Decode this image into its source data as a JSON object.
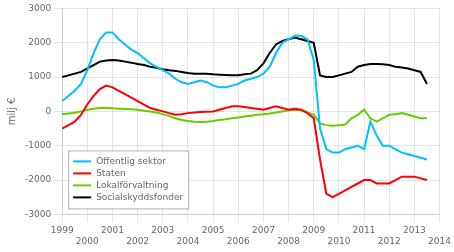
{
  "chart_data": {
    "type": "line",
    "y_label": "milj €",
    "xlim": [
      1999.0,
      2014.0
    ],
    "ylim": [
      -3000,
      3000
    ],
    "xticks": [
      1999,
      2000,
      2001,
      2002,
      2003,
      2004,
      2005,
      2006,
      2007,
      2008,
      2009,
      2010,
      2011,
      2012,
      2013,
      2014
    ],
    "yticks": [
      -3000,
      -2000,
      -1000,
      0,
      1000,
      2000,
      3000
    ],
    "grid": true,
    "legend": "lower left",
    "x": [
      1999.0,
      1999.25,
      1999.5,
      1999.75,
      2000.0,
      2000.25,
      2000.5,
      2000.75,
      2001.0,
      2001.25,
      2001.5,
      2001.75,
      2002.0,
      2002.25,
      2002.5,
      2002.75,
      2003.0,
      2003.25,
      2003.5,
      2003.75,
      2004.0,
      2004.25,
      2004.5,
      2004.75,
      2005.0,
      2005.25,
      2005.5,
      2005.75,
      2006.0,
      2006.25,
      2006.5,
      2006.75,
      2007.0,
      2007.25,
      2007.5,
      2007.75,
      2008.0,
      2008.25,
      2008.5,
      2008.75,
      2009.0,
      2009.25,
      2009.5,
      2009.75,
      2010.0,
      2010.25,
      2010.5,
      2010.75,
      2011.0,
      2011.25,
      2011.5,
      2011.75,
      2012.0,
      2012.25,
      2012.5,
      2012.75,
      2013.0,
      2013.25,
      2013.5
    ],
    "series": [
      {
        "name": "Offentlig sektor",
        "color": "#00bfff",
        "values": [
          300,
          450,
          600,
          800,
          1200,
          1700,
          2100,
          2300,
          2300,
          2100,
          1950,
          1800,
          1700,
          1550,
          1400,
          1300,
          1200,
          1100,
          950,
          850,
          800,
          850,
          900,
          850,
          750,
          700,
          700,
          750,
          800,
          900,
          950,
          1000,
          1100,
          1300,
          1700,
          2000,
          2100,
          2200,
          2200,
          2100,
          1500,
          -500,
          -1100,
          -1200,
          -1200,
          -1100,
          -1050,
          -1000,
          -1100,
          -300,
          -700,
          -1000,
          -1000,
          -1100,
          -1200,
          -1250,
          -1300,
          -1350,
          -1400
        ]
      },
      {
        "name": "Staten",
        "color": "#ff0000",
        "values": [
          -500,
          -400,
          -300,
          -100,
          200,
          450,
          650,
          750,
          700,
          600,
          500,
          400,
          300,
          200,
          100,
          50,
          0,
          -50,
          -100,
          -80,
          -50,
          -30,
          -20,
          -10,
          0,
          50,
          100,
          150,
          150,
          130,
          100,
          80,
          50,
          100,
          150,
          100,
          50,
          80,
          50,
          -50,
          -200,
          -1400,
          -2400,
          -2500,
          -2400,
          -2300,
          -2200,
          -2100,
          -2000,
          -2000,
          -2100,
          -2100,
          -2100,
          -2000,
          -1900,
          -1900,
          -1900,
          -1950,
          -2000
        ]
      },
      {
        "name": "Lokalförvaltning",
        "color": "#66cc00",
        "values": [
          -80,
          -60,
          -40,
          0,
          50,
          80,
          100,
          100,
          90,
          80,
          70,
          60,
          50,
          20,
          0,
          -30,
          -80,
          -130,
          -200,
          -250,
          -280,
          -300,
          -310,
          -300,
          -280,
          -250,
          -230,
          -200,
          -180,
          -150,
          -130,
          -100,
          -80,
          -60,
          -30,
          0,
          30,
          50,
          30,
          -30,
          -100,
          -350,
          -400,
          -420,
          -400,
          -380,
          -200,
          -100,
          50,
          -200,
          -300,
          -200,
          -100,
          -80,
          -50,
          -100,
          -150,
          -200,
          -200
        ]
      },
      {
        "name": "Socialskyddsfonder",
        "color": "#000000",
        "values": [
          1000,
          1050,
          1100,
          1150,
          1250,
          1350,
          1450,
          1480,
          1500,
          1480,
          1450,
          1420,
          1380,
          1350,
          1300,
          1270,
          1230,
          1200,
          1180,
          1150,
          1120,
          1100,
          1100,
          1100,
          1080,
          1070,
          1060,
          1050,
          1050,
          1080,
          1100,
          1200,
          1400,
          1700,
          1950,
          2050,
          2100,
          2150,
          2100,
          2050,
          2000,
          1050,
          1000,
          1000,
          1050,
          1100,
          1150,
          1300,
          1350,
          1380,
          1380,
          1370,
          1350,
          1300,
          1280,
          1250,
          1200,
          1150,
          800
        ]
      }
    ]
  }
}
